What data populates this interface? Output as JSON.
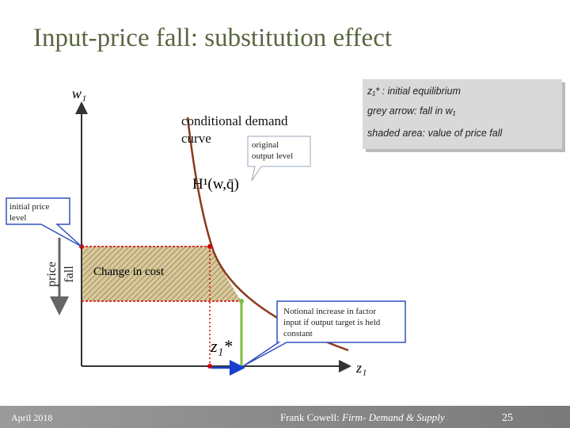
{
  "title": "Input-price fall: substitution effect",
  "legend": {
    "items": [
      "z₁* : initial equilibrium",
      "grey arrow: fall in w₁",
      "shaded area: value of price fall"
    ]
  },
  "axes": {
    "y_label": "w₁",
    "x_label": "z₁"
  },
  "labels": {
    "curve": [
      "conditional demand",
      "curve"
    ],
    "function": "H¹(w,q̄)",
    "equilibrium": "z₁*",
    "price_fall": [
      "price",
      "fall"
    ],
    "change_in_cost": "Change in cost"
  },
  "callouts": {
    "output_level": [
      "original",
      "output level"
    ],
    "price_level": [
      "initial price",
      "level"
    ],
    "notional": [
      "Notional increase in factor",
      "input if output target is held",
      "constant"
    ]
  },
  "footer": {
    "date": "April 2018",
    "author": "Frank Cowell:",
    "subject": "Firm- Demand & Supply",
    "page": "25"
  }
}
